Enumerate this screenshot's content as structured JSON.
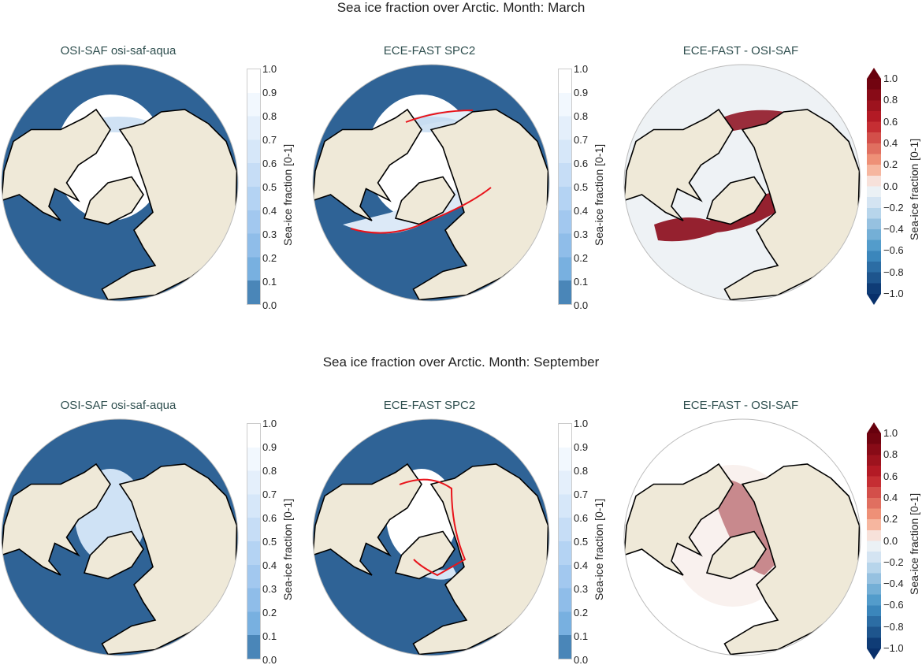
{
  "figure": {
    "rows": [
      {
        "title": "Sea ice fraction over Arctic. Month: March",
        "month": "march",
        "panels": [
          {
            "title": "OSI-SAF osi-saf-aqua",
            "kind": "obs"
          },
          {
            "title": "ECE-FAST SPC2",
            "kind": "model"
          },
          {
            "title": "ECE-FAST -  OSI-SAF",
            "kind": "diff"
          }
        ]
      },
      {
        "title": "Sea ice fraction over Arctic. Month: September",
        "month": "september",
        "panels": [
          {
            "title": "OSI-SAF osi-saf-aqua",
            "kind": "obs"
          },
          {
            "title": "ECE-FAST SPC2",
            "kind": "model"
          },
          {
            "title": "ECE-FAST -  OSI-SAF",
            "kind": "diff"
          }
        ]
      }
    ],
    "colorbar_label": "Sea-ice fraction [0-1]",
    "seq_ticks": [
      "1.0",
      "0.9",
      "0.8",
      "0.7",
      "0.6",
      "0.5",
      "0.4",
      "0.3",
      "0.2",
      "0.1",
      "0.0"
    ],
    "div_ticks": [
      "1.0",
      "0.8",
      "0.6",
      "0.4",
      "0.2",
      "0.0",
      "−0.2",
      "−0.4",
      "−0.6",
      "−0.8",
      "−1.0"
    ],
    "colors": {
      "ocean": "#2f6396",
      "land": "#efe9d8",
      "ice": "#ffffff",
      "diff_bg": "#eef2f5",
      "diff_red": "#8b0a1a",
      "contour": "#e8141b"
    }
  }
}
